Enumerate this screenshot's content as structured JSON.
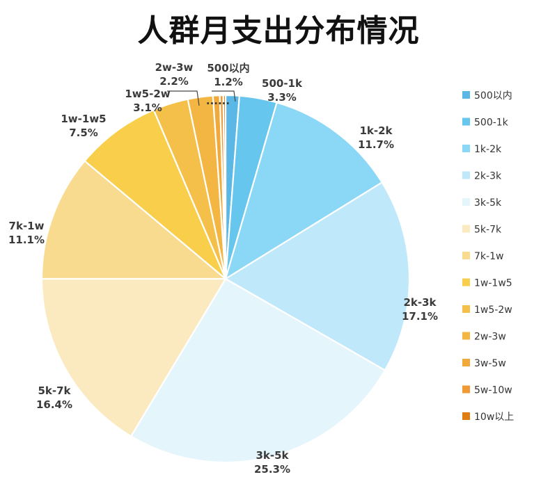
{
  "title": "人群月支出分布情况",
  "chart_data": {
    "type": "pie",
    "title": "人群月支出分布情况",
    "legend_position": "right",
    "slices": [
      {
        "label": "500以内",
        "value": 1.2,
        "value_label": "1.2%",
        "color": "#5bb8e6"
      },
      {
        "label": "500-1k",
        "value": 3.3,
        "value_label": "3.3%",
        "color": "#66c6ee"
      },
      {
        "label": "1k-2k",
        "value": 11.7,
        "value_label": "11.7%",
        "color": "#8bd7f6"
      },
      {
        "label": "2k-3k",
        "value": 17.1,
        "value_label": "17.1%",
        "color": "#bfe8fa"
      },
      {
        "label": "3k-5k",
        "value": 25.3,
        "value_label": "25.3%",
        "color": "#e5f5fc"
      },
      {
        "label": "5k-7k",
        "value": 16.4,
        "value_label": "16.4%",
        "color": "#fbe9bf"
      },
      {
        "label": "7k-1w",
        "value": 11.1,
        "value_label": "11.1%",
        "color": "#f9db8f"
      },
      {
        "label": "1w-1w5",
        "value": 7.5,
        "value_label": "7.5%",
        "color": "#f8ce4b"
      },
      {
        "label": "1w5-2w",
        "value": 3.1,
        "value_label": "3.1%",
        "color": "#f5c04a"
      },
      {
        "label": "2w-3w",
        "value": 2.2,
        "value_label": "2.2%",
        "color": "#f4b642"
      },
      {
        "label": "3w-5w",
        "value": 0.6,
        "value_label": "",
        "color": "#f2a93c"
      },
      {
        "label": "5w-10w",
        "value": 0.3,
        "value_label": "",
        "color": "#ef9a35"
      },
      {
        "label": "10w以上",
        "value": 0.2,
        "value_label": "",
        "color": "#e07d12"
      }
    ],
    "ellipsis": "......"
  }
}
